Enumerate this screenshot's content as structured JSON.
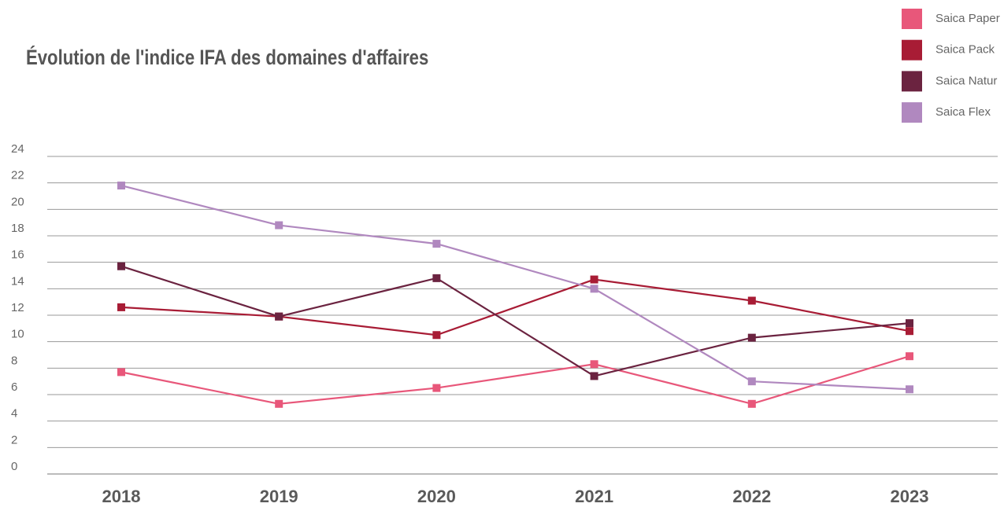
{
  "chart_data": {
    "type": "line",
    "title": "Évolution de l'indice IFA des domaines d'affaires",
    "categories": [
      "2018",
      "2019",
      "2020",
      "2021",
      "2022",
      "2023"
    ],
    "series": [
      {
        "name": "Saica Paper",
        "color": "#e8577a",
        "values": [
          7.7,
          5.3,
          6.5,
          8.3,
          5.3,
          8.9
        ]
      },
      {
        "name": "Saica Pack",
        "color": "#a81c35",
        "values": [
          12.6,
          11.9,
          10.5,
          14.7,
          13.1,
          10.8
        ]
      },
      {
        "name": "Saica Natur",
        "color": "#6b2340",
        "values": [
          15.7,
          11.9,
          14.8,
          7.4,
          10.3,
          11.4
        ]
      },
      {
        "name": "Saica Flex",
        "color": "#b088bf",
        "values": [
          21.8,
          18.8,
          17.4,
          14.0,
          7.0,
          6.4
        ]
      }
    ],
    "ylim": [
      0,
      24
    ],
    "yticks": [
      0,
      2,
      4,
      6,
      8,
      10,
      12,
      14,
      16,
      18,
      20,
      22,
      24
    ],
    "grid": true,
    "legend": "top-right"
  }
}
